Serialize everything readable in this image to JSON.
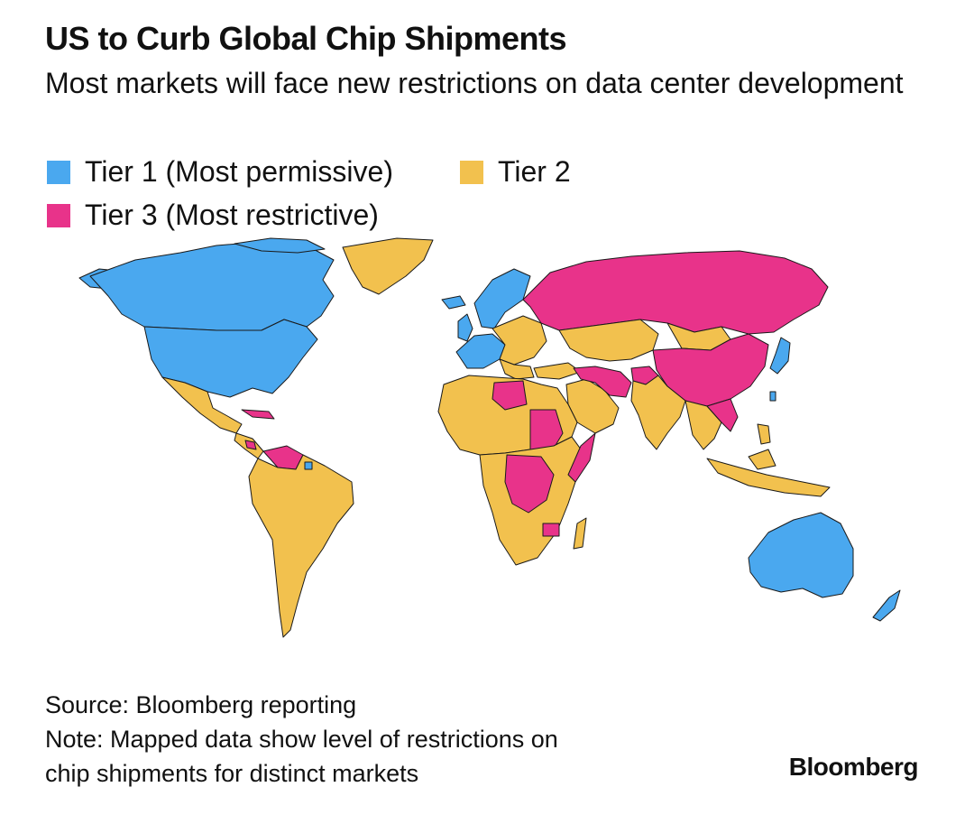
{
  "title": "US to Curb Global Chip Shipments",
  "subtitle": "Most markets will face new restrictions on data center development",
  "legend": [
    {
      "label": "Tier 1 (Most permissive)",
      "color": "#4aa8ef"
    },
    {
      "label": "Tier 2",
      "color": "#f2c14e"
    },
    {
      "label": "Tier 3 (Most restrictive)",
      "color": "#e8338a"
    }
  ],
  "colors": {
    "tier1": "#4aa8ef",
    "tier2": "#f2c14e",
    "tier3": "#e8338a",
    "border": "#1a1a1a"
  },
  "source_line": "Source: Bloomberg reporting",
  "note_line1": "Note: Mapped data show level of restrictions on",
  "note_line2": "chip shipments for distinct markets",
  "logo": "Bloomberg"
}
